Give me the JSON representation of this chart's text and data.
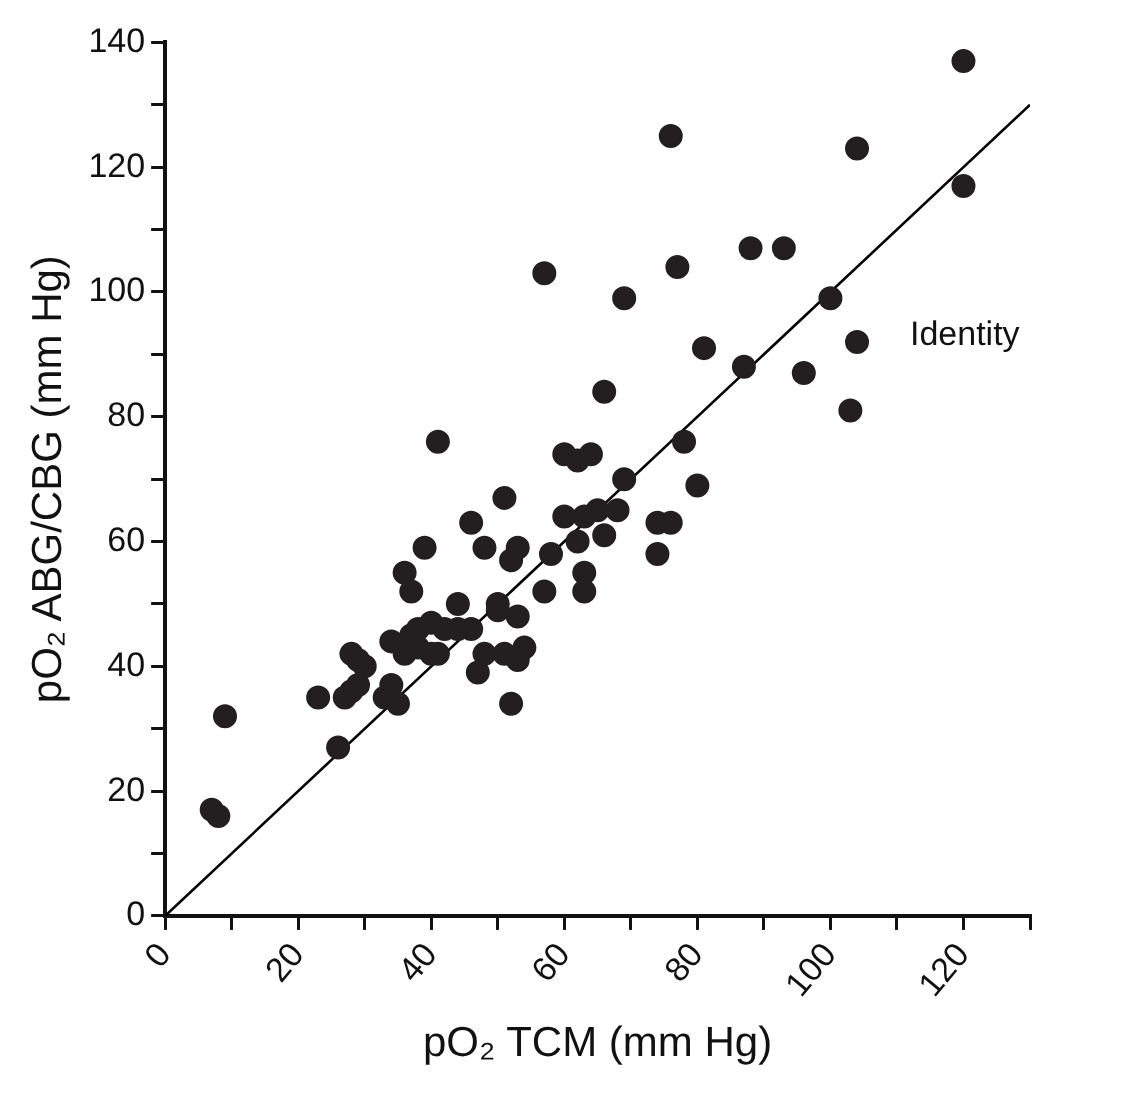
{
  "chart_data": {
    "type": "scatter",
    "xlabel": "pO₂ TCM (mm Hg)",
    "ylabel": "pO₂ ABG/CBG (mm Hg)",
    "xlim": [
      0,
      130
    ],
    "ylim": [
      0,
      140
    ],
    "xticks": [
      0,
      {
        "value": 10,
        "label": null
      },
      20,
      {
        "value": 30,
        "label": null
      },
      40,
      {
        "value": 50,
        "label": null
      },
      60,
      {
        "value": 70,
        "label": null
      },
      80,
      {
        "value": 90,
        "label": null
      },
      100,
      {
        "value": 110,
        "label": null
      },
      120,
      {
        "value": 130,
        "label": null
      }
    ],
    "yticks": [
      0,
      {
        "value": 10,
        "label": null
      },
      20,
      {
        "value": 30,
        "label": null
      },
      40,
      {
        "value": 50,
        "label": null
      },
      60,
      {
        "value": 70,
        "label": null
      },
      80,
      {
        "value": 90,
        "label": null
      },
      100,
      {
        "value": 110,
        "label": null
      },
      120,
      {
        "value": 130,
        "label": null
      },
      140
    ],
    "grid": false,
    "legend": false,
    "series": [
      {
        "marker": "circle",
        "color": "#231f20",
        "x": [
          120,
          76,
          104,
          120,
          57,
          77,
          88,
          93,
          69,
          100,
          104,
          81,
          87,
          96,
          103,
          66,
          41,
          78,
          60,
          62,
          64,
          69,
          80,
          51,
          68,
          65,
          63,
          60,
          74,
          76,
          66,
          62,
          46,
          39,
          48,
          58,
          53,
          52,
          74,
          36,
          37,
          63,
          63,
          57,
          44,
          50,
          50,
          53,
          38,
          40,
          42,
          44,
          46,
          37,
          36,
          34,
          40,
          41,
          38,
          48,
          51,
          54,
          53,
          47,
          28,
          29,
          30,
          29,
          28,
          27,
          23,
          34,
          33,
          35,
          52,
          26,
          9,
          7,
          8
        ],
        "values": [
          137,
          125,
          123,
          117,
          103,
          104,
          107,
          107,
          99,
          99,
          92,
          91,
          88,
          87,
          81,
          84,
          76,
          76,
          74,
          73,
          74,
          70,
          69,
          67,
          65,
          65,
          64,
          64,
          63,
          63,
          61,
          60,
          63,
          59,
          59,
          58,
          59,
          57,
          58,
          55,
          52,
          55,
          52,
          52,
          50,
          50,
          49,
          48,
          46,
          47,
          46,
          46,
          46,
          45,
          42,
          44,
          42,
          42,
          43,
          42,
          42,
          43,
          41,
          39,
          42,
          41,
          40,
          37,
          36,
          35,
          35,
          37,
          35,
          34,
          34,
          27,
          32,
          17,
          16
        ]
      },
      {
        "type": "line",
        "marker": "none",
        "name": "Identity",
        "color": "#000000",
        "x": [
          0,
          130
        ],
        "values": [
          0,
          130
        ]
      }
    ]
  }
}
